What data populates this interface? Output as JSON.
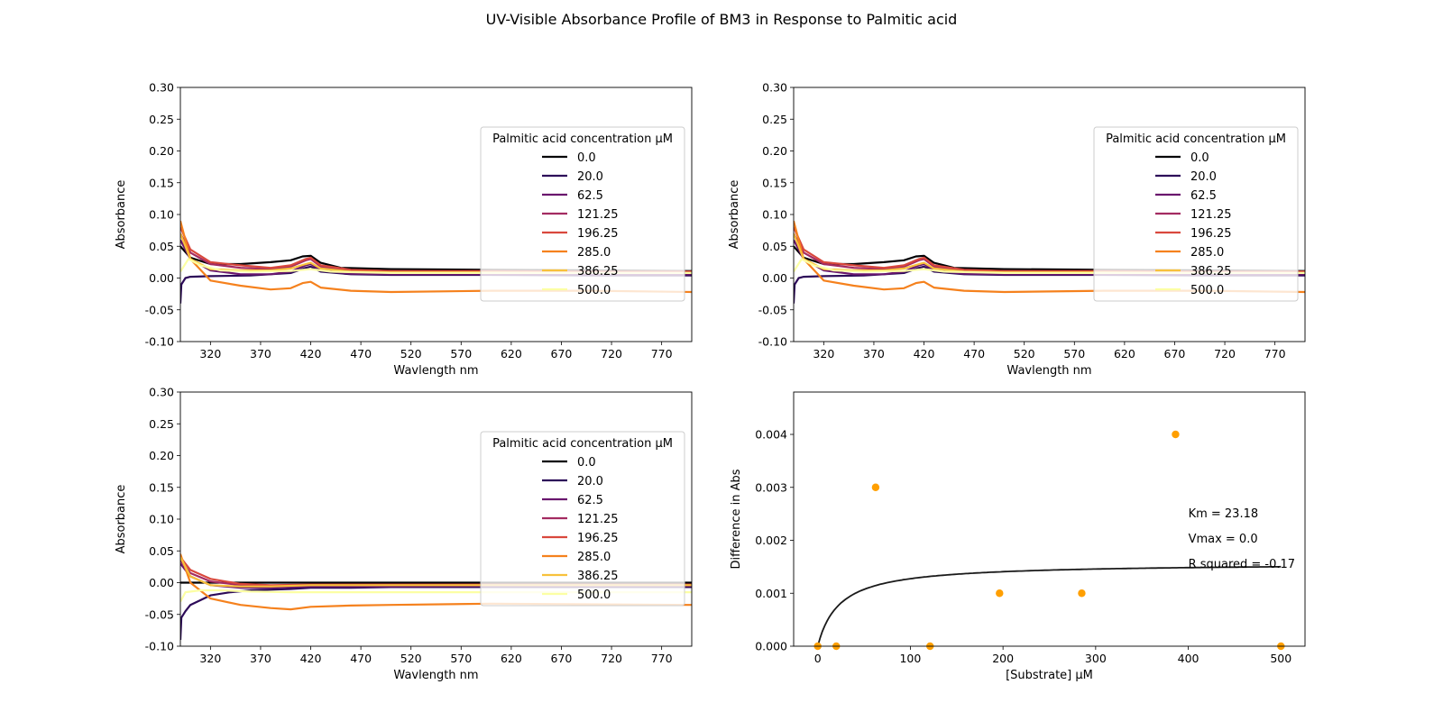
{
  "title": "UV-Visible Absorbance Profile of BM3 in Response to Palmitic acid",
  "colors": {
    "0.0": "#000004",
    "20.0": "#2d0b59",
    "62.5": "#6a176e",
    "121.25": "#a32b61",
    "196.25": "#d9483d",
    "285.0": "#f5811d",
    "386.25": "#f8c13b",
    "500.0": "#fcffa4",
    "scatter": "#ff9f00",
    "fit": "#1a1a1a"
  },
  "chart_data": [
    {
      "type": "line",
      "panel": "top-left",
      "xlabel": "Wavlength nm",
      "ylabel": "Absorbance",
      "xlim": [
        290,
        800
      ],
      "ylim": [
        -0.1,
        0.3
      ],
      "xticks": [
        320,
        370,
        420,
        470,
        520,
        570,
        620,
        670,
        720,
        770
      ],
      "yticks": [
        -0.1,
        -0.05,
        0.0,
        0.05,
        0.1,
        0.15,
        0.2,
        0.25,
        0.3
      ],
      "legend": {
        "title": "Palmitic acid concentration µM",
        "placement": "center-right"
      },
      "series": [
        {
          "name": "0.0",
          "x": [
            290,
            300,
            320,
            350,
            380,
            400,
            412,
            420,
            430,
            450,
            500,
            600,
            700,
            800
          ],
          "y": [
            0.05,
            0.032,
            0.022,
            0.022,
            0.025,
            0.028,
            0.034,
            0.035,
            0.024,
            0.016,
            0.014,
            0.013,
            0.012,
            0.011
          ]
        },
        {
          "name": "20.0",
          "x": [
            290,
            291,
            295,
            300,
            320,
            360,
            380,
            400,
            415,
            420,
            430,
            460,
            500,
            600,
            700,
            800
          ],
          "y": [
            -0.04,
            -0.01,
            0.0,
            0.002,
            0.003,
            0.004,
            0.006,
            0.008,
            0.016,
            0.018,
            0.01,
            0.006,
            0.005,
            0.005,
            0.004,
            0.004
          ]
        },
        {
          "name": "62.5",
          "x": [
            290,
            300,
            320,
            350,
            380,
            400,
            415,
            420,
            430,
            460,
            500,
            600,
            700,
            800
          ],
          "y": [
            0.06,
            0.03,
            0.012,
            0.006,
            0.006,
            0.01,
            0.02,
            0.022,
            0.012,
            0.007,
            0.006,
            0.006,
            0.006,
            0.006
          ]
        },
        {
          "name": "121.25",
          "x": [
            290,
            300,
            320,
            350,
            380,
            400,
            415,
            420,
            430,
            460,
            500,
            600,
            700,
            800
          ],
          "y": [
            0.07,
            0.04,
            0.022,
            0.016,
            0.014,
            0.018,
            0.028,
            0.03,
            0.018,
            0.012,
            0.01,
            0.01,
            0.009,
            0.009
          ]
        },
        {
          "name": "196.25",
          "x": [
            290,
            300,
            320,
            350,
            380,
            400,
            415,
            420,
            430,
            460,
            500,
            600,
            700,
            800
          ],
          "y": [
            0.08,
            0.045,
            0.025,
            0.02,
            0.016,
            0.02,
            0.03,
            0.032,
            0.02,
            0.013,
            0.011,
            0.011,
            0.01,
            0.01
          ]
        },
        {
          "name": "285.0",
          "x": [
            290,
            300,
            320,
            350,
            380,
            400,
            412,
            420,
            430,
            460,
            500,
            600,
            700,
            800
          ],
          "y": [
            0.09,
            0.03,
            -0.004,
            -0.012,
            -0.018,
            -0.016,
            -0.008,
            -0.006,
            -0.015,
            -0.02,
            -0.022,
            -0.02,
            -0.02,
            -0.022
          ]
        },
        {
          "name": "386.25",
          "x": [
            290,
            300,
            320,
            350,
            380,
            400,
            415,
            420,
            430,
            460,
            500,
            600,
            700,
            800
          ],
          "y": [
            0.07,
            0.03,
            0.014,
            0.012,
            0.012,
            0.015,
            0.022,
            0.024,
            0.015,
            0.01,
            0.009,
            0.009,
            0.008,
            0.008
          ]
        },
        {
          "name": "500.0",
          "x": [
            290,
            298,
            310,
            330,
            360,
            400,
            420,
            440,
            500,
            600,
            700,
            800
          ],
          "y": [
            0.01,
            0.03,
            0.02,
            0.012,
            0.01,
            0.011,
            0.014,
            0.01,
            0.008,
            0.008,
            0.008,
            0.008
          ]
        }
      ]
    },
    {
      "type": "line",
      "panel": "top-right",
      "xlabel": "Wavlength nm",
      "ylabel": "Absorbance",
      "xlim": [
        290,
        800
      ],
      "ylim": [
        -0.1,
        0.3
      ],
      "xticks": [
        320,
        370,
        420,
        470,
        520,
        570,
        620,
        670,
        720,
        770
      ],
      "yticks": [
        -0.1,
        -0.05,
        0.0,
        0.05,
        0.1,
        0.15,
        0.2,
        0.25,
        0.3
      ],
      "legend": {
        "title": "Palmitic acid concentration µM",
        "placement": "center-right"
      },
      "series": [
        {
          "name": "0.0",
          "x": [
            290,
            300,
            320,
            350,
            380,
            400,
            412,
            420,
            430,
            450,
            500,
            600,
            700,
            800
          ],
          "y": [
            0.05,
            0.032,
            0.022,
            0.022,
            0.025,
            0.028,
            0.034,
            0.035,
            0.024,
            0.016,
            0.014,
            0.013,
            0.012,
            0.011
          ]
        },
        {
          "name": "20.0",
          "x": [
            290,
            291,
            295,
            300,
            320,
            360,
            380,
            400,
            415,
            420,
            430,
            460,
            500,
            600,
            700,
            800
          ],
          "y": [
            -0.04,
            -0.01,
            0.0,
            0.002,
            0.003,
            0.004,
            0.006,
            0.008,
            0.016,
            0.018,
            0.01,
            0.006,
            0.005,
            0.005,
            0.004,
            0.004
          ]
        },
        {
          "name": "62.5",
          "x": [
            290,
            300,
            320,
            350,
            380,
            400,
            415,
            420,
            430,
            460,
            500,
            600,
            700,
            800
          ],
          "y": [
            0.06,
            0.03,
            0.012,
            0.006,
            0.006,
            0.01,
            0.02,
            0.022,
            0.012,
            0.007,
            0.006,
            0.006,
            0.006,
            0.006
          ]
        },
        {
          "name": "121.25",
          "x": [
            290,
            300,
            320,
            350,
            380,
            400,
            415,
            420,
            430,
            460,
            500,
            600,
            700,
            800
          ],
          "y": [
            0.07,
            0.04,
            0.022,
            0.016,
            0.014,
            0.018,
            0.028,
            0.03,
            0.018,
            0.012,
            0.01,
            0.01,
            0.009,
            0.009
          ]
        },
        {
          "name": "196.25",
          "x": [
            290,
            300,
            320,
            350,
            380,
            400,
            415,
            420,
            430,
            460,
            500,
            600,
            700,
            800
          ],
          "y": [
            0.08,
            0.045,
            0.025,
            0.02,
            0.016,
            0.02,
            0.03,
            0.032,
            0.02,
            0.013,
            0.011,
            0.011,
            0.01,
            0.01
          ]
        },
        {
          "name": "285.0",
          "x": [
            290,
            300,
            320,
            350,
            380,
            400,
            412,
            420,
            430,
            460,
            500,
            600,
            700,
            800
          ],
          "y": [
            0.09,
            0.03,
            -0.004,
            -0.012,
            -0.018,
            -0.016,
            -0.008,
            -0.006,
            -0.015,
            -0.02,
            -0.022,
            -0.02,
            -0.02,
            -0.022
          ]
        },
        {
          "name": "386.25",
          "x": [
            290,
            300,
            320,
            350,
            380,
            400,
            415,
            420,
            430,
            460,
            500,
            600,
            700,
            800
          ],
          "y": [
            0.07,
            0.03,
            0.014,
            0.012,
            0.012,
            0.015,
            0.022,
            0.024,
            0.015,
            0.01,
            0.009,
            0.009,
            0.008,
            0.008
          ]
        },
        {
          "name": "500.0",
          "x": [
            290,
            298,
            310,
            330,
            360,
            400,
            420,
            440,
            500,
            600,
            700,
            800
          ],
          "y": [
            0.01,
            0.03,
            0.02,
            0.012,
            0.01,
            0.011,
            0.014,
            0.01,
            0.008,
            0.008,
            0.008,
            0.008
          ]
        }
      ]
    },
    {
      "type": "line",
      "panel": "bottom-left",
      "xlabel": "Wavlength nm",
      "ylabel": "Absorbance",
      "xlim": [
        290,
        800
      ],
      "ylim": [
        -0.1,
        0.3
      ],
      "xticks": [
        320,
        370,
        420,
        470,
        520,
        570,
        620,
        670,
        720,
        770
      ],
      "yticks": [
        -0.1,
        -0.05,
        0.0,
        0.05,
        0.1,
        0.15,
        0.2,
        0.25,
        0.3
      ],
      "legend": {
        "title": "Palmitic acid concentration µM",
        "placement": "center-right"
      },
      "series": [
        {
          "name": "0.0",
          "x": [
            290,
            800
          ],
          "y": [
            0.0,
            0.0
          ]
        },
        {
          "name": "20.0",
          "x": [
            290,
            291,
            295,
            300,
            320,
            340,
            360,
            400,
            420,
            460,
            500,
            600,
            700,
            800
          ],
          "y": [
            -0.09,
            -0.055,
            -0.045,
            -0.035,
            -0.02,
            -0.015,
            -0.012,
            -0.01,
            -0.008,
            -0.008,
            -0.007,
            -0.007,
            -0.007,
            -0.007
          ]
        },
        {
          "name": "62.5",
          "x": [
            290,
            300,
            320,
            350,
            380,
            420,
            460,
            500,
            600,
            700,
            800
          ],
          "y": [
            0.03,
            0.01,
            -0.004,
            -0.008,
            -0.008,
            -0.006,
            -0.006,
            -0.006,
            -0.005,
            -0.005,
            -0.005
          ]
        },
        {
          "name": "121.25",
          "x": [
            290,
            300,
            320,
            350,
            380,
            420,
            460,
            500,
            600,
            700,
            800
          ],
          "y": [
            0.035,
            0.015,
            0.002,
            -0.004,
            -0.006,
            -0.004,
            -0.004,
            -0.004,
            -0.004,
            -0.004,
            -0.004
          ]
        },
        {
          "name": "196.25",
          "x": [
            290,
            300,
            320,
            350,
            380,
            420,
            460,
            500,
            600,
            700,
            800
          ],
          "y": [
            0.04,
            0.02,
            0.006,
            -0.002,
            -0.004,
            -0.003,
            -0.003,
            -0.003,
            -0.003,
            -0.003,
            -0.003
          ]
        },
        {
          "name": "285.0",
          "x": [
            290,
            300,
            320,
            350,
            380,
            400,
            420,
            460,
            500,
            600,
            700,
            800
          ],
          "y": [
            0.045,
            0.0,
            -0.025,
            -0.035,
            -0.04,
            -0.042,
            -0.038,
            -0.036,
            -0.035,
            -0.033,
            -0.034,
            -0.035
          ]
        },
        {
          "name": "386.25",
          "x": [
            290,
            300,
            320,
            350,
            380,
            420,
            460,
            500,
            600,
            700,
            800
          ],
          "y": [
            0.04,
            0.01,
            -0.004,
            -0.006,
            -0.006,
            -0.004,
            -0.004,
            -0.004,
            -0.004,
            -0.004,
            -0.004
          ]
        },
        {
          "name": "500.0",
          "x": [
            290,
            295,
            310,
            330,
            360,
            400,
            440,
            500,
            600,
            700,
            800
          ],
          "y": [
            -0.03,
            -0.015,
            -0.012,
            -0.012,
            -0.014,
            -0.015,
            -0.015,
            -0.015,
            -0.015,
            -0.015,
            -0.015
          ]
        }
      ]
    },
    {
      "type": "scatter",
      "panel": "bottom-right",
      "xlabel": "[Substrate] µM",
      "ylabel": "Difference in Abs",
      "xlim": [
        -26,
        526
      ],
      "ylim": [
        0,
        0.0048
      ],
      "xticks": [
        0,
        100,
        200,
        300,
        400,
        500
      ],
      "yticks": [
        0.0,
        0.001,
        0.002,
        0.003,
        0.004
      ],
      "ytick_labels": [
        "0.000",
        "0.001",
        "0.002",
        "0.003",
        "0.004"
      ],
      "points": {
        "x": [
          0,
          20,
          62.5,
          121.25,
          196.25,
          285,
          386.25,
          500
        ],
        "y": [
          0.0,
          0.0,
          0.003,
          0.0,
          0.001,
          0.001,
          0.004,
          0.0
        ]
      },
      "fit": {
        "model": "michaelis-menten",
        "Km": 23.18,
        "Vmax": 0.00157,
        "x_range": [
          0,
          500
        ]
      },
      "annotations": [
        "Km = 23.18",
        "Vmax = 0.0",
        "R squared = -0.17"
      ]
    }
  ]
}
